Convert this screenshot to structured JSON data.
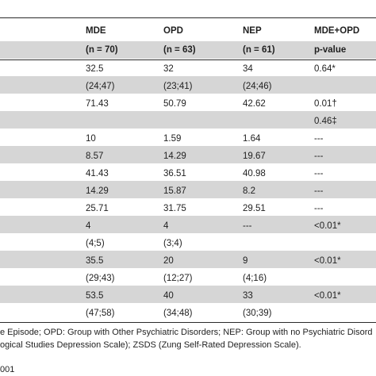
{
  "table": {
    "headers": [
      [
        "MDE",
        "OPD",
        "NEP",
        "MDE+OPD"
      ],
      [
        "(n = 70)",
        "(n = 63)",
        "(n = 61)",
        "p-value"
      ]
    ],
    "rows": [
      [
        "32.5",
        "32",
        "34",
        "0.64*"
      ],
      [
        "(24;47)",
        "(23;41)",
        "(24;46)",
        ""
      ],
      [
        "71.43",
        "50.79",
        "42.62",
        "0.01†"
      ],
      [
        "",
        "",
        "",
        "0.46‡"
      ],
      [
        "10",
        "1.59",
        "1.64",
        "---"
      ],
      [
        "8.57",
        "14.29",
        "19.67",
        "---"
      ],
      [
        "41.43",
        "36.51",
        "40.98",
        "---"
      ],
      [
        "14.29",
        "15.87",
        "8.2",
        "---"
      ],
      [
        "25.71",
        "31.75",
        "29.51",
        "---"
      ],
      [
        "4",
        "4",
        "---",
        "<0.01*"
      ],
      [
        "(4;5)",
        "(3;4)",
        "",
        ""
      ],
      [
        "35.5",
        "20",
        "9",
        "<0.01*"
      ],
      [
        "(29;43)",
        "(12;27)",
        "(4;16)",
        ""
      ],
      [
        "53.5",
        "40",
        "33",
        "<0.01*"
      ],
      [
        "(47;58)",
        "(34;48)",
        "(30;39)",
        ""
      ]
    ]
  },
  "footnotes": [
    "e Episode; OPD: Group with Other Psychiatric Disorders; NEP: Group with no Psychiatric Disord",
    "ogical Studies Depression Scale); ZSDS (Zung Self-Rated Depression Scale)."
  ],
  "doi_fragment": "001"
}
